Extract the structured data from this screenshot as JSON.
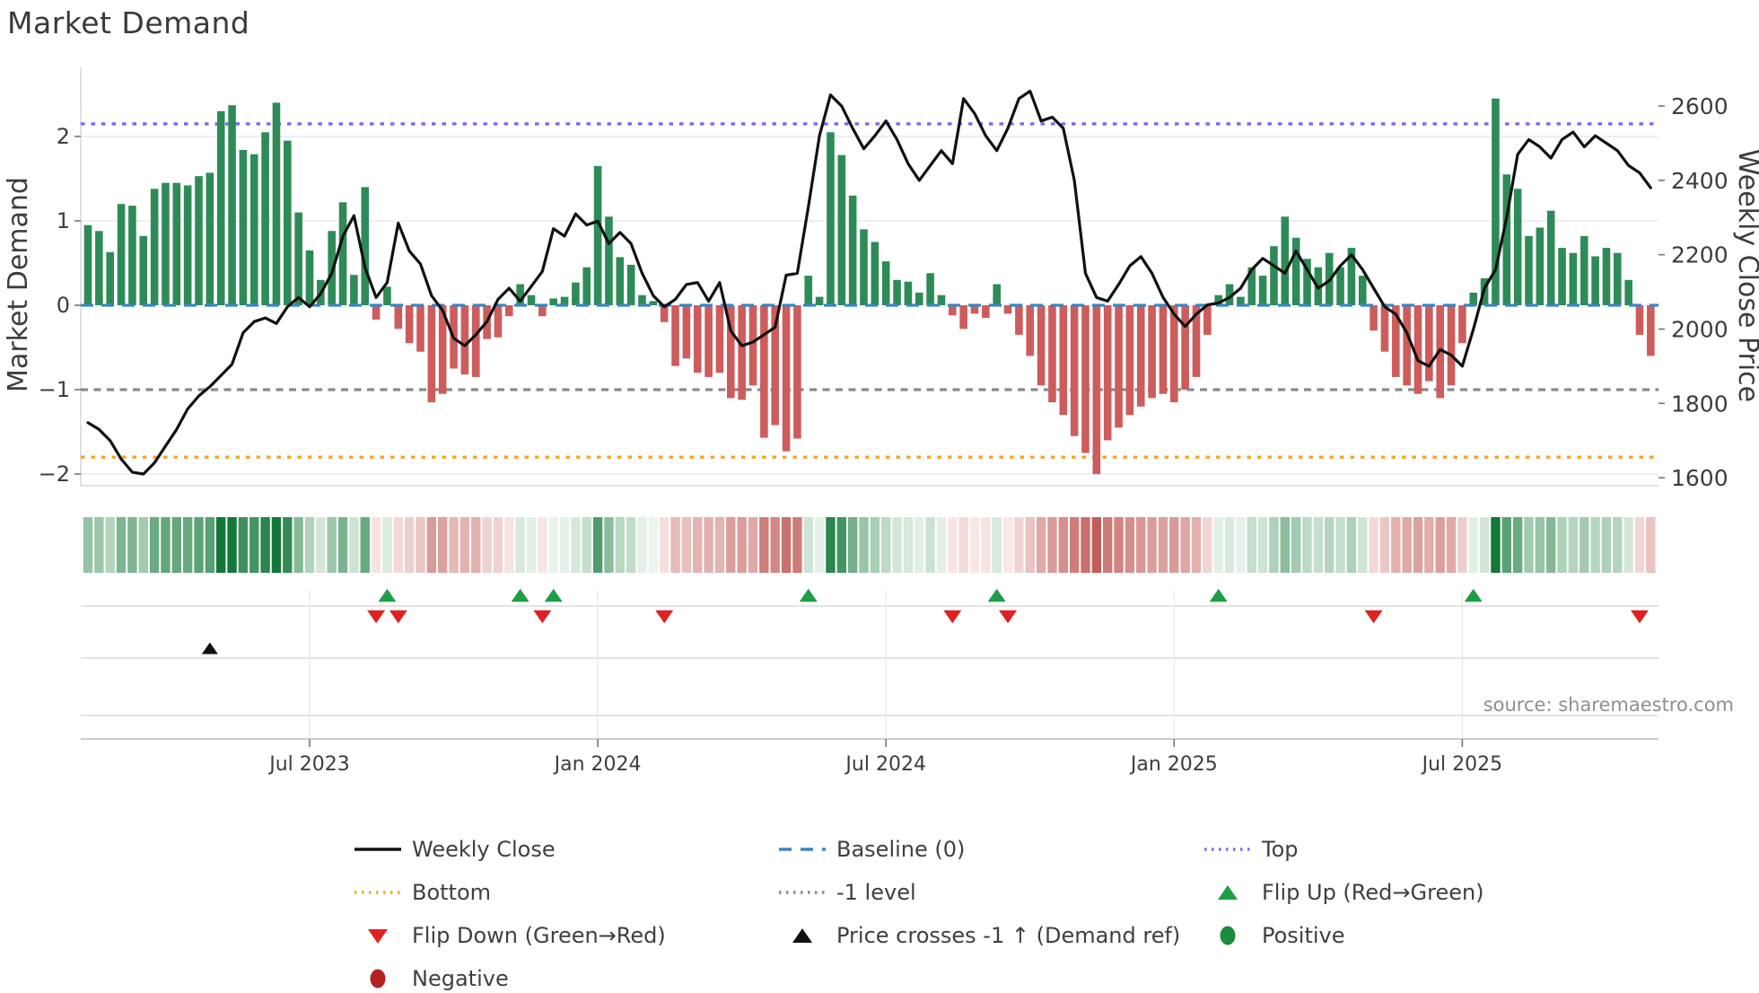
{
  "title": "Market Demand",
  "source_text": "source: sharemaestro.com",
  "axes": {
    "left_label": "Market Demand",
    "right_label": "Weekly Close Price"
  },
  "legend": {
    "items": [
      {
        "label": "Weekly Close",
        "swatch": "line",
        "color": "#111111",
        "col": 0,
        "row": 0
      },
      {
        "label": "Baseline (0)",
        "swatch": "dashed",
        "color": "#3a86c4",
        "col": 1,
        "row": 0
      },
      {
        "label": "Top",
        "swatch": "dotted",
        "color": "#7b68ee",
        "col": 2,
        "row": 0
      },
      {
        "label": "Bottom",
        "swatch": "dotted",
        "color": "#f5a42a",
        "col": 0,
        "row": 1
      },
      {
        "label": "-1 level",
        "swatch": "dotted",
        "color": "#8a8a8a",
        "col": 1,
        "row": 1
      },
      {
        "label": "Flip Up (Red→Green)",
        "swatch": "tri-up",
        "color": "#1d9e45",
        "col": 2,
        "row": 1
      },
      {
        "label": "Flip Down (Green→Red)",
        "swatch": "tri-down",
        "color": "#dd2222",
        "col": 0,
        "row": 2
      },
      {
        "label": "Price crosses -1 ↑ (Demand ref)",
        "swatch": "tri-up",
        "color": "#111111",
        "col": 1,
        "row": 2
      },
      {
        "label": "Positive",
        "swatch": "dot",
        "color": "#1d8a3e",
        "col": 2,
        "row": 2
      },
      {
        "label": "Negative",
        "swatch": "dot",
        "color": "#b22222",
        "col": 0,
        "row": 3
      }
    ]
  },
  "colors": {
    "positive_bar": "#2e8b57",
    "negative_bar": "#cd5c5c",
    "price_line": "#111111",
    "baseline": "#3a86c4",
    "top_line": "#7b68ee",
    "bottom_line": "#f5a42a",
    "minus1_line": "#8a8a8a",
    "flip_up": "#1d9e45",
    "flip_down": "#dd2222",
    "price_cross": "#111111",
    "heat_green": "#127838",
    "heat_red": "#b74844",
    "grid": "#e9e9f2",
    "spine": "#cfcfd8",
    "band_line": "#d4d4d4",
    "axis_line": "#bdbdbd",
    "tick": "#777777",
    "text": "#3d3d3d",
    "muted_text": "#8f8f8f"
  },
  "chart_data": {
    "type": "bar+line",
    "title": "Market Demand",
    "ylabel_left": "Market Demand",
    "ylabel_right": "Weekly Close Price",
    "x_unit": "week",
    "n_weeks": 142,
    "x_tick_weeks": [
      20,
      46,
      72,
      98,
      124
    ],
    "x_tick_labels": [
      "Jul 2023",
      "Jan 2024",
      "Jul 2024",
      "Jan 2025",
      "Jul 2025"
    ],
    "left_ticks": [
      {
        "label": "2",
        "v": 2
      },
      {
        "label": "1",
        "v": 1
      },
      {
        "label": "0",
        "v": 0
      },
      {
        "label": "−1",
        "v": -1
      },
      {
        "label": "−2",
        "v": -2
      }
    ],
    "right_ticks": [
      2600,
      2400,
      2200,
      2000,
      1800,
      1600
    ],
    "demand_ylim": [
      -2.35,
      2.7
    ],
    "price_ylim": [
      1580,
      2680
    ],
    "ref_lines": {
      "baseline": 0,
      "top": 2.15,
      "bottom": -1.8,
      "minus1": -1
    },
    "markers": {
      "flip_up_weeks": [
        27,
        39,
        42,
        65,
        82,
        102,
        125
      ],
      "flip_down_weeks": [
        26,
        28,
        41,
        52,
        78,
        83,
        116,
        140
      ],
      "price_cross_weeks": [
        11
      ]
    },
    "demand": [
      0.95,
      0.88,
      0.63,
      1.2,
      1.18,
      0.82,
      1.38,
      1.45,
      1.45,
      1.42,
      1.53,
      1.57,
      2.3,
      2.37,
      1.84,
      1.79,
      2.05,
      2.4,
      1.95,
      1.1,
      0.65,
      0.3,
      0.88,
      1.22,
      0.36,
      1.4,
      -0.17,
      0.22,
      -0.28,
      -0.45,
      -0.55,
      -1.15,
      -1.05,
      -0.75,
      -0.82,
      -0.85,
      -0.4,
      -0.38,
      -0.13,
      0.25,
      0.12,
      -0.13,
      0.08,
      0.1,
      0.27,
      0.45,
      1.65,
      1.05,
      0.57,
      0.48,
      0.12,
      0.05,
      -0.2,
      -0.72,
      -0.63,
      -0.8,
      -0.85,
      -0.8,
      -1.1,
      -1.12,
      -0.95,
      -1.57,
      -1.42,
      -1.73,
      -1.58,
      0.35,
      0.1,
      2.05,
      1.78,
      1.3,
      0.9,
      0.75,
      0.52,
      0.3,
      0.28,
      0.15,
      0.38,
      0.12,
      -0.12,
      -0.28,
      -0.1,
      -0.15,
      0.25,
      -0.1,
      -0.35,
      -0.6,
      -0.95,
      -1.15,
      -1.3,
      -1.55,
      -1.75,
      -2.0,
      -1.6,
      -1.45,
      -1.3,
      -1.2,
      -1.1,
      -1.05,
      -1.15,
      -1.0,
      -0.85,
      -0.35,
      0.12,
      0.25,
      0.1,
      0.45,
      0.35,
      0.7,
      1.05,
      0.8,
      0.55,
      0.45,
      0.62,
      0.45,
      0.68,
      0.35,
      -0.3,
      -0.55,
      -0.85,
      -0.95,
      -1.05,
      -0.9,
      -1.1,
      -0.95,
      -0.45,
      0.15,
      0.32,
      2.45,
      1.55,
      1.38,
      0.82,
      0.92,
      1.12,
      0.68,
      0.62,
      0.82,
      0.58,
      0.68,
      0.62,
      0.3,
      -0.35,
      -0.6
    ],
    "price": [
      1748,
      1730,
      1700,
      1650,
      1615,
      1610,
      1640,
      1685,
      1730,
      1785,
      1820,
      1845,
      1875,
      1905,
      1990,
      2020,
      2030,
      2015,
      2060,
      2085,
      2060,
      2095,
      2150,
      2250,
      2305,
      2165,
      2085,
      2125,
      2285,
      2210,
      2175,
      2090,
      2050,
      1975,
      1955,
      1985,
      2020,
      2080,
      2110,
      2075,
      2115,
      2155,
      2270,
      2250,
      2310,
      2280,
      2290,
      2230,
      2260,
      2230,
      2150,
      2090,
      2060,
      2080,
      2120,
      2125,
      2075,
      2125,
      1995,
      1955,
      1965,
      1985,
      2005,
      2145,
      2150,
      2330,
      2520,
      2630,
      2600,
      2540,
      2485,
      2520,
      2560,
      2510,
      2445,
      2400,
      2440,
      2480,
      2445,
      2620,
      2580,
      2520,
      2480,
      2540,
      2620,
      2640,
      2560,
      2570,
      2540,
      2400,
      2150,
      2085,
      2075,
      2120,
      2170,
      2195,
      2150,
      2085,
      2040,
      2007,
      2040,
      2065,
      2070,
      2085,
      2110,
      2160,
      2190,
      2170,
      2150,
      2210,
      2160,
      2110,
      2130,
      2170,
      2200,
      2160,
      2110,
      2060,
      2040,
      1990,
      1915,
      1900,
      1945,
      1930,
      1900,
      2000,
      2110,
      2160,
      2300,
      2470,
      2510,
      2490,
      2460,
      2510,
      2530,
      2490,
      2520,
      2500,
      2480,
      2440,
      2420,
      2380
    ]
  }
}
